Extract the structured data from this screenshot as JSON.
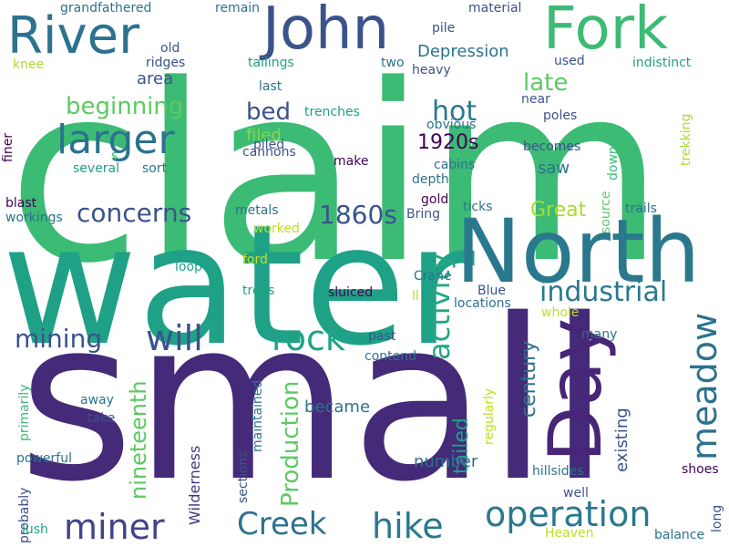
{
  "words": [
    {
      "text": "claim",
      "color": "#3cbb75",
      "size": 268,
      "rotate": 0
    },
    {
      "text": "small",
      "color": "#452a79",
      "size": 244,
      "rotate": 0
    },
    {
      "text": "water",
      "color": "#1fa187",
      "size": 182,
      "rotate": 0
    },
    {
      "text": "North",
      "color": "#2a788e",
      "size": 96,
      "rotate": 0
    },
    {
      "text": "Day",
      "color": "#482577",
      "size": 80,
      "rotate": -90
    },
    {
      "text": "Fork",
      "color": "#3cbb75",
      "size": 64,
      "rotate": 0
    },
    {
      "text": "John",
      "color": "#3b528b",
      "size": 64,
      "rotate": 0
    },
    {
      "text": "River",
      "color": "#2c728e",
      "size": 56,
      "rotate": 0
    },
    {
      "text": "larger",
      "color": "#2c728e",
      "size": 44,
      "rotate": 0
    },
    {
      "text": "operation",
      "color": "#2a788e",
      "size": 38,
      "rotate": 0
    },
    {
      "text": "meadow",
      "color": "#2c728e",
      "size": 38,
      "rotate": -90
    },
    {
      "text": "rock",
      "color": "#20a386",
      "size": 38,
      "rotate": 0
    },
    {
      "text": "will",
      "color": "#3b528b",
      "size": 38,
      "rotate": 0
    },
    {
      "text": "hike",
      "color": "#2a788e",
      "size": 38,
      "rotate": 0
    },
    {
      "text": "miner",
      "color": "#414487",
      "size": 38,
      "rotate": 0
    },
    {
      "text": "Creek",
      "color": "#2c728e",
      "size": 34,
      "rotate": 0
    },
    {
      "text": "activity",
      "color": "#22a884",
      "size": 32,
      "rotate": -90
    },
    {
      "text": "industrial",
      "color": "#2a788e",
      "size": 30,
      "rotate": 0
    },
    {
      "text": "hot",
      "color": "#2a788e",
      "size": 30,
      "rotate": 0
    },
    {
      "text": "concerns",
      "color": "#3b528b",
      "size": 28,
      "rotate": 0
    },
    {
      "text": "1860s",
      "color": "#3b528b",
      "size": 28,
      "rotate": 0
    },
    {
      "text": "mining",
      "color": "#3b528b",
      "size": 28,
      "rotate": 0
    },
    {
      "text": "beginning",
      "color": "#5ec962",
      "size": 26,
      "rotate": 0
    },
    {
      "text": "bed",
      "color": "#3b528b",
      "size": 26,
      "rotate": 0
    },
    {
      "text": "late",
      "color": "#5ec962",
      "size": 26,
      "rotate": 0
    },
    {
      "text": "Production",
      "color": "#5ec962",
      "size": 26,
      "rotate": -90
    },
    {
      "text": "nineteenth",
      "color": "#5ec962",
      "size": 24,
      "rotate": -90
    },
    {
      "text": "century",
      "color": "#2c728e",
      "size": 22,
      "rotate": -90
    },
    {
      "text": "tailed",
      "color": "#1fa187",
      "size": 22,
      "rotate": -90
    },
    {
      "text": "Great",
      "color": "#a8db34",
      "size": 22,
      "rotate": 0
    },
    {
      "text": "1920s",
      "color": "#440154",
      "size": 22,
      "rotate": 0
    },
    {
      "text": "Depression",
      "color": "#2c728e",
      "size": 18,
      "rotate": 0
    },
    {
      "text": "area",
      "color": "#3b528b",
      "size": 18,
      "rotate": 0
    },
    {
      "text": "saw",
      "color": "#2c728e",
      "size": 18,
      "rotate": 0
    },
    {
      "text": "filed",
      "color": "#86d549",
      "size": 18,
      "rotate": 0
    },
    {
      "text": "number",
      "color": "#2c728e",
      "size": 18,
      "rotate": 0
    },
    {
      "text": "became",
      "color": "#2c728e",
      "size": 18,
      "rotate": 0
    },
    {
      "text": "existing",
      "color": "#3b528b",
      "size": 18,
      "rotate": -90
    },
    {
      "text": "Wilderness",
      "color": "#46337e",
      "size": 16,
      "rotate": -90
    },
    {
      "text": "grandfathered",
      "color": "#2c728e",
      "size": 14,
      "rotate": 0
    },
    {
      "text": "remain",
      "color": "#2c728e",
      "size": 14,
      "rotate": 0
    },
    {
      "text": "material",
      "color": "#3b528b",
      "size": 14,
      "rotate": 0
    },
    {
      "text": "old",
      "color": "#3b528b",
      "size": 14,
      "rotate": 0
    },
    {
      "text": "pile",
      "color": "#3b528b",
      "size": 14,
      "rotate": 0
    },
    {
      "text": "ridges",
      "color": "#3b528b",
      "size": 14,
      "rotate": 0
    },
    {
      "text": "tailings",
      "color": "#1fa187",
      "size": 14,
      "rotate": 0
    },
    {
      "text": "two",
      "color": "#2c728e",
      "size": 14,
      "rotate": 0
    },
    {
      "text": "heavy",
      "color": "#3b528b",
      "size": 14,
      "rotate": 0
    },
    {
      "text": "used",
      "color": "#3b528b",
      "size": 14,
      "rotate": 0
    },
    {
      "text": "indistinct",
      "color": "#1fa187",
      "size": 14,
      "rotate": 0
    },
    {
      "text": "knee",
      "color": "#a8db34",
      "size": 14,
      "rotate": 0
    },
    {
      "text": "last",
      "color": "#2c728e",
      "size": 14,
      "rotate": 0
    },
    {
      "text": "near",
      "color": "#3b528b",
      "size": 14,
      "rotate": 0
    },
    {
      "text": "trenches",
      "color": "#1fa187",
      "size": 14,
      "rotate": 0
    },
    {
      "text": "poles",
      "color": "#3b528b",
      "size": 14,
      "rotate": 0
    },
    {
      "text": "obvious",
      "color": "#2c728e",
      "size": 14,
      "rotate": 0
    },
    {
      "text": "finer",
      "color": "#440154",
      "size": 14,
      "rotate": -90
    },
    {
      "text": "cannons",
      "color": "#3b528b",
      "size": 14,
      "rotate": 0
    },
    {
      "text": "becomes",
      "color": "#3b528b",
      "size": 14,
      "rotate": 0
    },
    {
      "text": "trekking",
      "color": "#a8db34",
      "size": 14,
      "rotate": -90
    },
    {
      "text": "s",
      "color": "#3cbb75",
      "size": 14,
      "rotate": 0
    },
    {
      "text": "piled",
      "color": "#3b528b",
      "size": 14,
      "rotate": 0
    },
    {
      "text": "make",
      "color": "#440154",
      "size": 14,
      "rotate": 0
    },
    {
      "text": "cabins",
      "color": "#2c728e",
      "size": 14,
      "rotate": 0
    },
    {
      "text": "downed",
      "color": "#3cbb75",
      "size": 14,
      "rotate": -90
    },
    {
      "text": "several",
      "color": "#1fa187",
      "size": 14,
      "rotate": 0
    },
    {
      "text": "sort",
      "color": "#2c728e",
      "size": 14,
      "rotate": 0
    },
    {
      "text": "depth",
      "color": "#2c728e",
      "size": 14,
      "rotate": 0
    },
    {
      "text": "blast",
      "color": "#440154",
      "size": 14,
      "rotate": 0
    },
    {
      "text": "gold",
      "color": "#440154",
      "size": 14,
      "rotate": 0
    },
    {
      "text": "ticks",
      "color": "#2c728e",
      "size": 14,
      "rotate": 0
    },
    {
      "text": "source",
      "color": "#5ec962",
      "size": 14,
      "rotate": -90
    },
    {
      "text": "trails",
      "color": "#2c728e",
      "size": 14,
      "rotate": 0
    },
    {
      "text": "workings",
      "color": "#2c728e",
      "size": 14,
      "rotate": 0
    },
    {
      "text": "metals",
      "color": "#2c728e",
      "size": 14,
      "rotate": 0
    },
    {
      "text": "Bring",
      "color": "#3b528b",
      "size": 14,
      "rotate": 0
    },
    {
      "text": "worked",
      "color": "#bddf26",
      "size": 14,
      "rotate": 0
    },
    {
      "text": "loop",
      "color": "#1fa187",
      "size": 14,
      "rotate": 0
    },
    {
      "text": "ford",
      "color": "#bddf26",
      "size": 14,
      "rotate": 0
    },
    {
      "text": "Crane",
      "color": "#2c728e",
      "size": 14,
      "rotate": 0
    },
    {
      "text": "trees",
      "color": "#1fa187",
      "size": 14,
      "rotate": 0
    },
    {
      "text": "sluiced",
      "color": "#440154",
      "size": 14,
      "rotate": 0
    },
    {
      "text": "ll",
      "color": "#bddf26",
      "size": 14,
      "rotate": 0
    },
    {
      "text": "Blue",
      "color": "#3b528b",
      "size": 14,
      "rotate": 0
    },
    {
      "text": "locations",
      "color": "#2c728e",
      "size": 14,
      "rotate": 0
    },
    {
      "text": "whole",
      "color": "#bddf26",
      "size": 14,
      "rotate": 0
    },
    {
      "text": "many",
      "color": "#2c728e",
      "size": 14,
      "rotate": 0
    },
    {
      "text": "past",
      "color": "#3b528b",
      "size": 14,
      "rotate": 0
    },
    {
      "text": "contend",
      "color": "#2c728e",
      "size": 14,
      "rotate": 0
    },
    {
      "text": "primarily",
      "color": "#3cbb75",
      "size": 14,
      "rotate": -90
    },
    {
      "text": "maintained",
      "color": "#2c728e",
      "size": 14,
      "rotate": -90
    },
    {
      "text": "away",
      "color": "#2c728e",
      "size": 14,
      "rotate": 0
    },
    {
      "text": "take",
      "color": "#3b528b",
      "size": 14,
      "rotate": 0
    },
    {
      "text": "regularly",
      "color": "#bddf26",
      "size": 14,
      "rotate": -90
    },
    {
      "text": "powerful",
      "color": "#2c728e",
      "size": 14,
      "rotate": 0
    },
    {
      "text": "sections",
      "color": "#3b528b",
      "size": 14,
      "rotate": -90
    },
    {
      "text": "hillsides",
      "color": "#2c728e",
      "size": 14,
      "rotate": 0
    },
    {
      "text": "shoes",
      "color": "#440154",
      "size": 14,
      "rotate": 0
    },
    {
      "text": "well",
      "color": "#3b528b",
      "size": 14,
      "rotate": 0
    },
    {
      "text": "probably",
      "color": "#3b528b",
      "size": 14,
      "rotate": -90
    },
    {
      "text": "lush",
      "color": "#1fa187",
      "size": 14,
      "rotate": 0
    },
    {
      "text": "Heaven",
      "color": "#bddf26",
      "size": 14,
      "rotate": 0
    },
    {
      "text": "balance",
      "color": "#2c728e",
      "size": 14,
      "rotate": 0
    },
    {
      "text": "long",
      "color": "#3b528b",
      "size": 14,
      "rotate": -90
    }
  ]
}
